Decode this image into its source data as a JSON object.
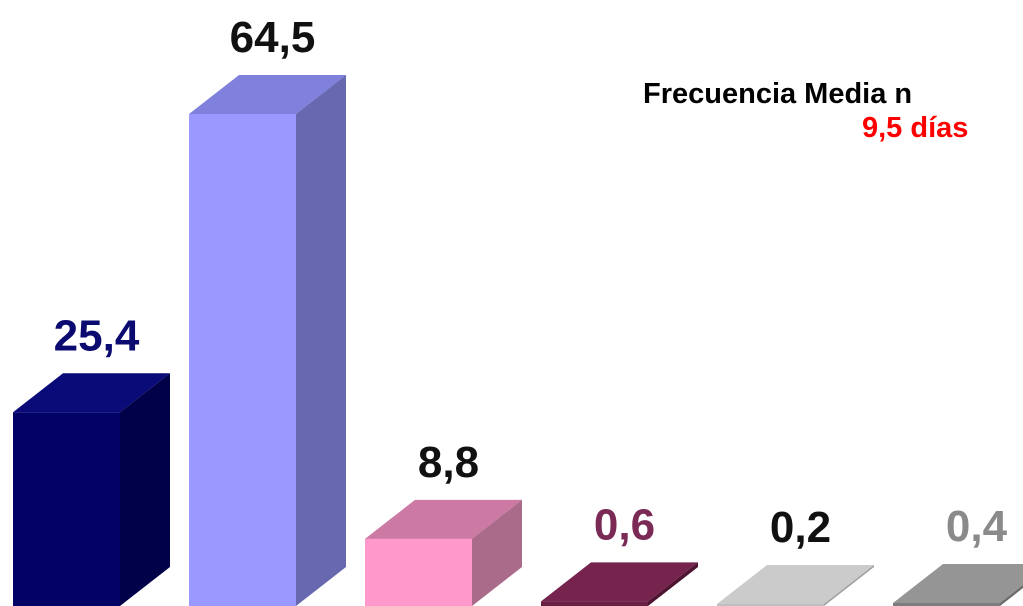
{
  "annotation": {
    "title": "Frecuencia Media n",
    "value": "9,5 días"
  },
  "chart_data": {
    "type": "bar",
    "ylim": [
      0,
      70
    ],
    "grid": false,
    "values": [
      25.4,
      64.5,
      8.8,
      0.6,
      0.2,
      0.4
    ],
    "labels": [
      "25,4",
      "64,5",
      "8,8",
      "0,6",
      "0,2",
      "0,4"
    ],
    "label_colors": [
      "#0a0a70",
      "#111111",
      "#111111",
      "#7a2a55",
      "#111111",
      "#8a8a8a"
    ],
    "colors": [
      {
        "front": "#020266",
        "top": "#0a0a78",
        "side": "#01014a"
      },
      {
        "front": "#9999ff",
        "top": "#8080dd",
        "side": "#6868b0"
      },
      {
        "front": "#ff99cc",
        "top": "#cc79a4",
        "side": "#aa6a8a"
      },
      {
        "front": "#6b1f45",
        "top": "#76244e",
        "side": "#4e1532"
      },
      {
        "front": "#c0c0c0",
        "top": "#cbcbcb",
        "side": "#9e9e9e"
      },
      {
        "front": "#7d7d7d",
        "top": "#959595",
        "side": "#6a6a6a"
      }
    ]
  }
}
